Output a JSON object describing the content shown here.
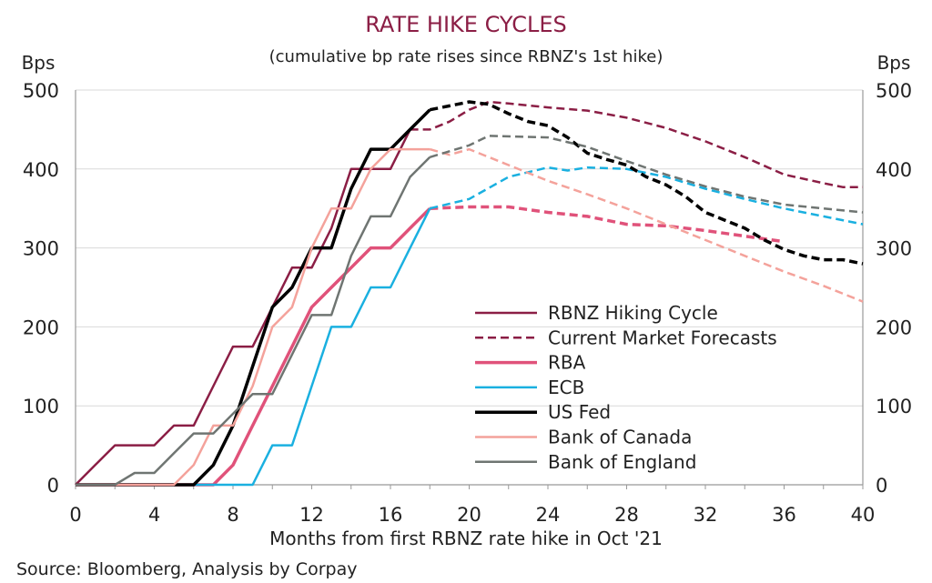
{
  "chart_data": {
    "type": "line",
    "title": "RATE HIKE CYCLES",
    "subtitle": "(cumulative bp rate rises since RBNZ's 1st hike)",
    "xlabel": "Months from first RBNZ rate hike in Oct '21",
    "ylabel_left": "Bps",
    "ylabel_right": "Bps",
    "source": "Source: Bloomberg, Analysis by Corpay",
    "xlim": [
      0,
      40
    ],
    "ylim": [
      0,
      500
    ],
    "xticks": [
      "0",
      "4",
      "8",
      "12",
      "16",
      "20",
      "24",
      "28",
      "32",
      "36",
      "40"
    ],
    "xtick_values": [
      0,
      4,
      8,
      12,
      16,
      20,
      24,
      28,
      32,
      36,
      40
    ],
    "yticks": [
      "0",
      "100",
      "200",
      "300",
      "400",
      "500"
    ],
    "ytick_values": [
      0,
      100,
      200,
      300,
      400,
      500
    ],
    "grid": "horizontal",
    "legend_position": "center-right",
    "series": [
      {
        "name": "RBNZ Hiking Cycle",
        "color": "#8b1e45",
        "dash": "solid",
        "width": 2.5,
        "points": [
          [
            0,
            0
          ],
          [
            1,
            25
          ],
          [
            2,
            50
          ],
          [
            3,
            50
          ],
          [
            4,
            50
          ],
          [
            5,
            75
          ],
          [
            6,
            75
          ],
          [
            7,
            125
          ],
          [
            8,
            175
          ],
          [
            9,
            175
          ],
          [
            10,
            225
          ],
          [
            11,
            275
          ],
          [
            12,
            275
          ],
          [
            13,
            325
          ],
          [
            14,
            400
          ],
          [
            15,
            400
          ],
          [
            16,
            400
          ],
          [
            17,
            450
          ],
          [
            18,
            475
          ]
        ]
      },
      {
        "name": "Current Market Forecasts",
        "color": "#8b1e45",
        "dash": "dashed",
        "width": 2.5,
        "points": [
          [
            17,
            450
          ],
          [
            18,
            450
          ],
          [
            19,
            460
          ],
          [
            20,
            475
          ],
          [
            21,
            485
          ],
          [
            22,
            483
          ],
          [
            24,
            478
          ],
          [
            26,
            474
          ],
          [
            28,
            465
          ],
          [
            30,
            452
          ],
          [
            32,
            435
          ],
          [
            34,
            415
          ],
          [
            36,
            393
          ],
          [
            38,
            382
          ],
          [
            39,
            377
          ],
          [
            40,
            377
          ]
        ]
      },
      {
        "name": "RBA",
        "color": "#e0527a",
        "dash": "solid",
        "width": 3.5,
        "points": [
          [
            0,
            0
          ],
          [
            7,
            0
          ],
          [
            8,
            25
          ],
          [
            9,
            75
          ],
          [
            10,
            125
          ],
          [
            11,
            175
          ],
          [
            12,
            225
          ],
          [
            13,
            250
          ],
          [
            14,
            275
          ],
          [
            15,
            300
          ],
          [
            16,
            300
          ],
          [
            17,
            325
          ],
          [
            18,
            350
          ]
        ]
      },
      {
        "name": "RBA forecast",
        "legend": false,
        "color": "#e0527a",
        "dash": "dashed",
        "width": 3.5,
        "points": [
          [
            18,
            350
          ],
          [
            20,
            352
          ],
          [
            22,
            352
          ],
          [
            24,
            345
          ],
          [
            26,
            340
          ],
          [
            28,
            330
          ],
          [
            30,
            328
          ],
          [
            32,
            322
          ],
          [
            34,
            315
          ],
          [
            36,
            308
          ]
        ]
      },
      {
        "name": "ECB",
        "color": "#1ab0e0",
        "dash": "solid",
        "width": 2.5,
        "points": [
          [
            0,
            0
          ],
          [
            9,
            0
          ],
          [
            10,
            50
          ],
          [
            11,
            50
          ],
          [
            12,
            125
          ],
          [
            13,
            200
          ],
          [
            14,
            200
          ],
          [
            15,
            250
          ],
          [
            16,
            250
          ],
          [
            17,
            300
          ],
          [
            18,
            350
          ]
        ]
      },
      {
        "name": "ECB forecast",
        "legend": false,
        "color": "#1ab0e0",
        "dash": "dashed",
        "width": 2.5,
        "points": [
          [
            18,
            350
          ],
          [
            20,
            362
          ],
          [
            22,
            390
          ],
          [
            24,
            402
          ],
          [
            25,
            398
          ],
          [
            26,
            402
          ],
          [
            28,
            400
          ],
          [
            30,
            390
          ],
          [
            32,
            375
          ],
          [
            34,
            362
          ],
          [
            36,
            350
          ],
          [
            38,
            340
          ],
          [
            40,
            330
          ]
        ]
      },
      {
        "name": "US Fed",
        "color": "#000000",
        "dash": "solid",
        "width": 3.5,
        "points": [
          [
            0,
            0
          ],
          [
            6,
            0
          ],
          [
            7,
            25
          ],
          [
            8,
            75
          ],
          [
            9,
            150
          ],
          [
            10,
            225
          ],
          [
            11,
            250
          ],
          [
            12,
            300
          ],
          [
            13,
            300
          ],
          [
            14,
            375
          ],
          [
            15,
            425
          ],
          [
            16,
            425
          ],
          [
            17,
            450
          ],
          [
            18,
            475
          ]
        ]
      },
      {
        "name": "US Fed forecast",
        "legend": false,
        "color": "#000000",
        "dash": "dashed",
        "width": 3.5,
        "points": [
          [
            18,
            475
          ],
          [
            19,
            480
          ],
          [
            20,
            485
          ],
          [
            21,
            482
          ],
          [
            22,
            470
          ],
          [
            23,
            460
          ],
          [
            24,
            455
          ],
          [
            25,
            440
          ],
          [
            26,
            420
          ],
          [
            27,
            412
          ],
          [
            28,
            405
          ],
          [
            29,
            390
          ],
          [
            30,
            380
          ],
          [
            31,
            365
          ],
          [
            32,
            345
          ],
          [
            33,
            335
          ],
          [
            34,
            325
          ],
          [
            35,
            310
          ],
          [
            36,
            298
          ],
          [
            37,
            290
          ],
          [
            38,
            285
          ],
          [
            39,
            285
          ],
          [
            40,
            280
          ]
        ]
      },
      {
        "name": "Bank of Canada",
        "color": "#f4a29b",
        "dash": "solid",
        "width": 2.5,
        "points": [
          [
            0,
            0
          ],
          [
            5,
            0
          ],
          [
            6,
            25
          ],
          [
            7,
            75
          ],
          [
            8,
            75
          ],
          [
            9,
            125
          ],
          [
            10,
            200
          ],
          [
            11,
            225
          ],
          [
            12,
            300
          ],
          [
            13,
            350
          ],
          [
            14,
            350
          ],
          [
            15,
            400
          ],
          [
            16,
            425
          ],
          [
            17,
            425
          ],
          [
            18,
            425
          ]
        ]
      },
      {
        "name": "Bank of Canada forecast",
        "legend": false,
        "color": "#f4a29b",
        "dash": "dashed",
        "width": 2.5,
        "points": [
          [
            18,
            425
          ],
          [
            19,
            418
          ],
          [
            20,
            425
          ],
          [
            22,
            405
          ],
          [
            24,
            385
          ],
          [
            26,
            368
          ],
          [
            28,
            350
          ],
          [
            30,
            330
          ],
          [
            32,
            310
          ],
          [
            34,
            290
          ],
          [
            36,
            270
          ],
          [
            38,
            252
          ],
          [
            40,
            232
          ]
        ]
      },
      {
        "name": "Bank of England",
        "color": "#6f7572",
        "dash": "solid",
        "width": 2.5,
        "points": [
          [
            0,
            0
          ],
          [
            2,
            0
          ],
          [
            3,
            15
          ],
          [
            4,
            15
          ],
          [
            5,
            40
          ],
          [
            6,
            65
          ],
          [
            7,
            65
          ],
          [
            8,
            90
          ],
          [
            9,
            115
          ],
          [
            10,
            115
          ],
          [
            11,
            165
          ],
          [
            12,
            215
          ],
          [
            13,
            215
          ],
          [
            14,
            290
          ],
          [
            15,
            340
          ],
          [
            16,
            340
          ],
          [
            17,
            390
          ],
          [
            18,
            415
          ]
        ]
      },
      {
        "name": "Bank of England forecast",
        "legend": false,
        "color": "#6f7572",
        "dash": "dashed",
        "width": 2.5,
        "points": [
          [
            18,
            415
          ],
          [
            20,
            430
          ],
          [
            21,
            442
          ],
          [
            24,
            440
          ],
          [
            26,
            428
          ],
          [
            28,
            410
          ],
          [
            30,
            393
          ],
          [
            32,
            378
          ],
          [
            34,
            365
          ],
          [
            36,
            355
          ],
          [
            38,
            350
          ],
          [
            40,
            345
          ]
        ]
      }
    ]
  },
  "colors": {
    "title": "#8b1e45",
    "grid": "#d9d9d9",
    "axis": "#999999",
    "text": "#222222"
  }
}
